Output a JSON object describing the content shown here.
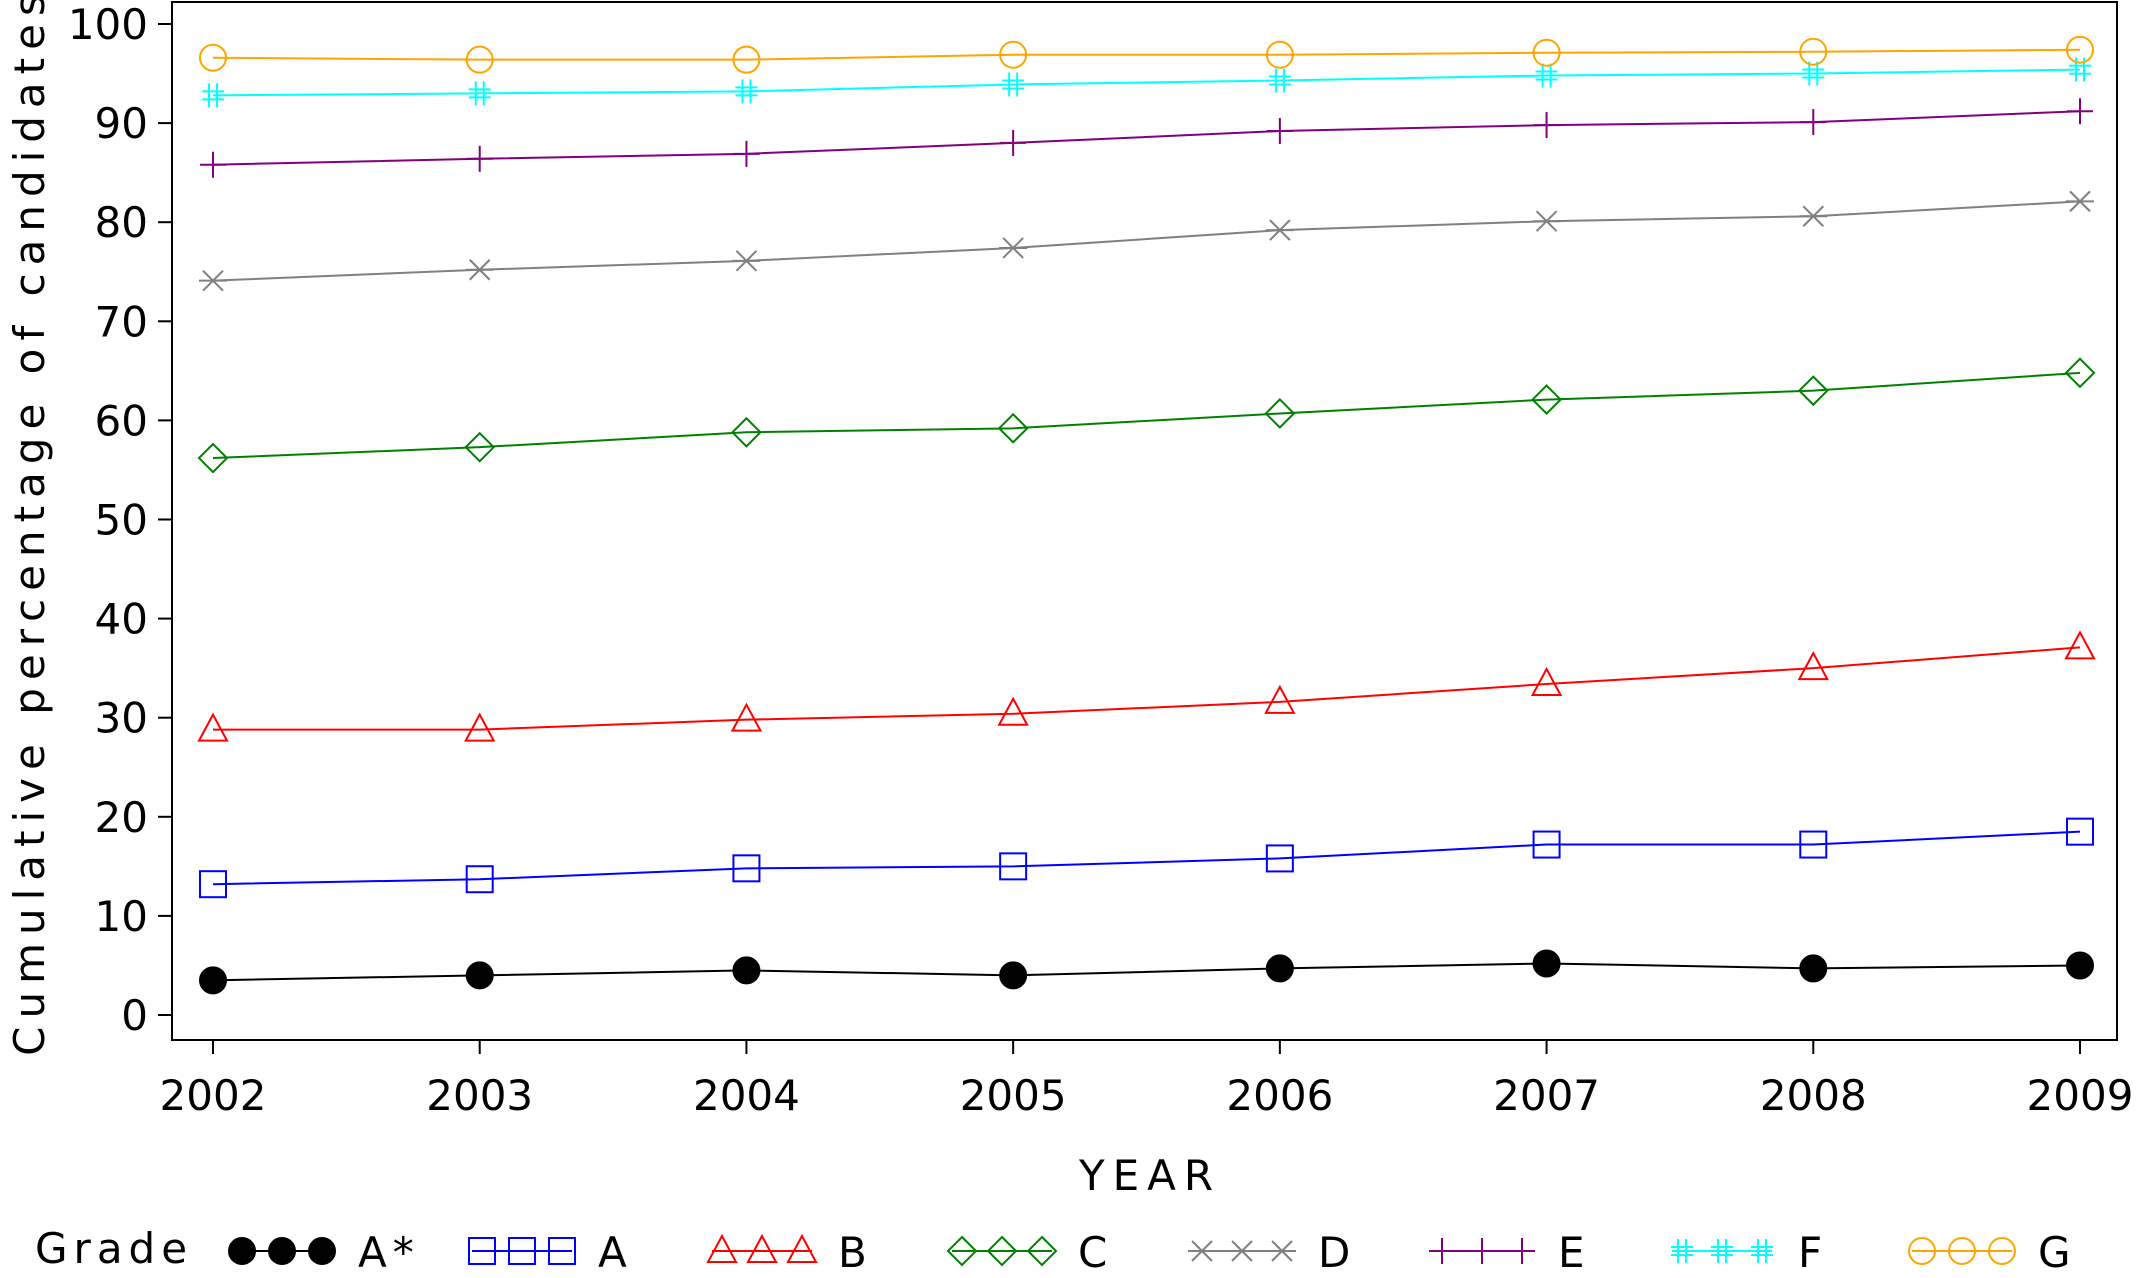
{
  "chart_data": {
    "type": "line",
    "title": "",
    "xlabel": "YEAR",
    "ylabel": "Cumulative percentage of candidates",
    "x": [
      2002,
      2003,
      2004,
      2005,
      2006,
      2007,
      2008,
      2009
    ],
    "xticks": [
      "2002",
      "2003",
      "2004",
      "2005",
      "2006",
      "2007",
      "2008",
      "2009"
    ],
    "yticks": [
      "0",
      "10",
      "20",
      "30",
      "40",
      "50",
      "60",
      "70",
      "80",
      "90",
      "100"
    ],
    "ylim": [
      0,
      100
    ],
    "grid": false,
    "legend": {
      "title": "Grade",
      "placement": "bottom"
    },
    "series": [
      {
        "name": "A*",
        "color": "#000000",
        "marker": "filled-circle",
        "values": [
          3.5,
          4.0,
          4.5,
          4.0,
          4.7,
          5.2,
          4.7,
          5.0
        ]
      },
      {
        "name": "A",
        "color": "#0000ff",
        "marker": "square",
        "values": [
          13.2,
          13.7,
          14.8,
          15.0,
          15.8,
          17.2,
          17.2,
          18.5
        ]
      },
      {
        "name": "B",
        "color": "#ff0000",
        "marker": "triangle",
        "values": [
          28.8,
          28.8,
          29.8,
          30.4,
          31.6,
          33.4,
          35.0,
          37.1
        ]
      },
      {
        "name": "C",
        "color": "#008000",
        "marker": "diamond",
        "values": [
          56.2,
          57.3,
          58.8,
          59.2,
          60.7,
          62.1,
          63.0,
          64.8
        ]
      },
      {
        "name": "D",
        "color": "#808080",
        "marker": "star",
        "values": [
          74.1,
          75.2,
          76.1,
          77.4,
          79.2,
          80.1,
          80.6,
          82.1
        ]
      },
      {
        "name": "E",
        "color": "#800080",
        "marker": "plus",
        "values": [
          85.8,
          86.4,
          86.9,
          88.0,
          89.2,
          89.8,
          90.1,
          91.2
        ]
      },
      {
        "name": "F",
        "color": "#00ffff",
        "marker": "hash",
        "values": [
          92.8,
          93.0,
          93.2,
          93.9,
          94.3,
          94.8,
          95.0,
          95.4
        ]
      },
      {
        "name": "G",
        "color": "#ffa500",
        "marker": "circle",
        "values": [
          96.6,
          96.4,
          96.4,
          96.9,
          96.9,
          97.1,
          97.2,
          97.4
        ]
      }
    ]
  }
}
